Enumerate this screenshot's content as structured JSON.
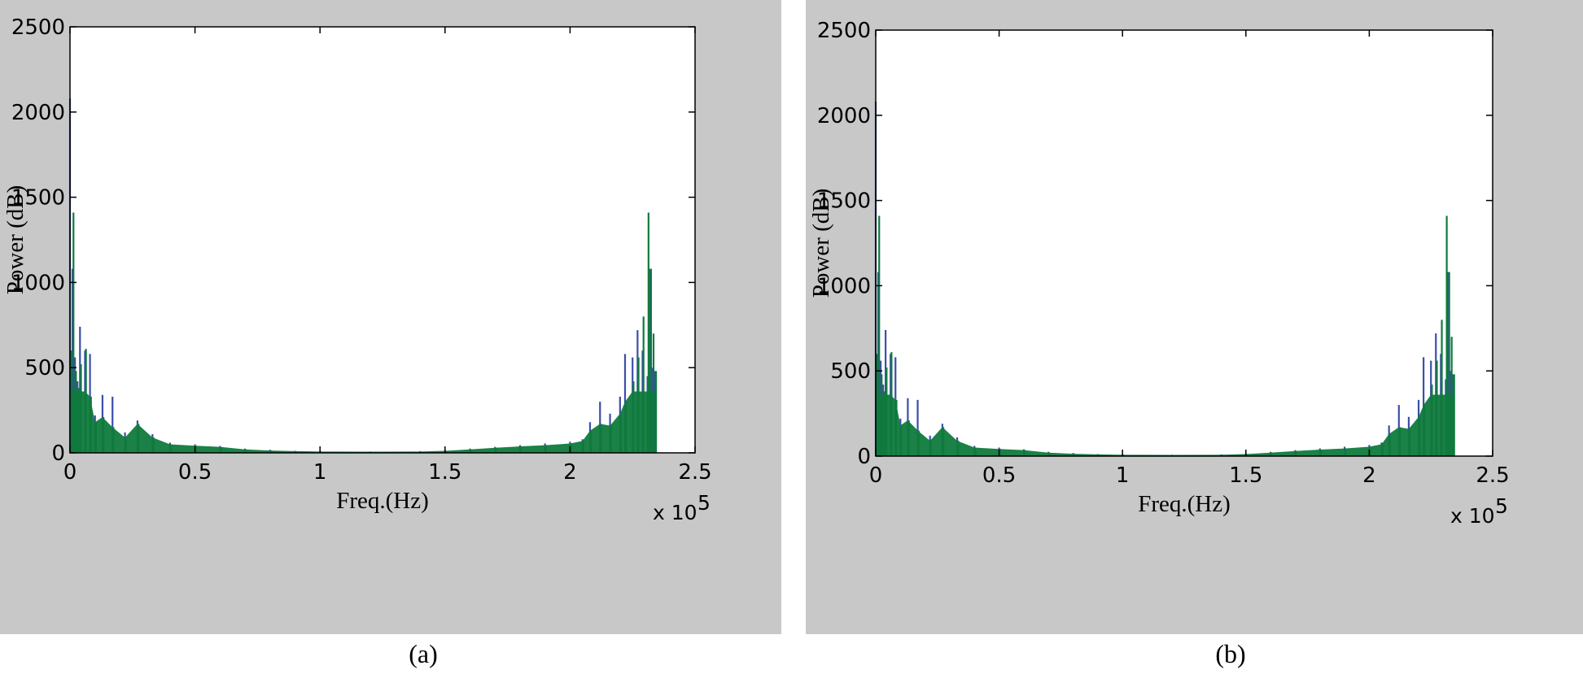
{
  "chart_data": [
    {
      "type": "bar",
      "panel_label": "(a)",
      "xlabel": "Freq.(Hz)",
      "ylabel": "Power (dB)",
      "x_multiplier": "x 10",
      "x_multiplier_exp": "5",
      "xlim": [
        0,
        2.5
      ],
      "ylim": [
        0,
        2500
      ],
      "xticks": [
        "0",
        "0.5",
        "1",
        "1.5",
        "2",
        "2.5"
      ],
      "yticks": [
        "0",
        "500",
        "1000",
        "1500",
        "2000",
        "2500"
      ],
      "grid": false,
      "colors": {
        "series_1": "#3a4fa8",
        "series_2": "#0f7a3c"
      },
      "series": [
        {
          "x": [
            0,
            0.01,
            0.02,
            0.03,
            0.04,
            0.06,
            0.08,
            0.1,
            0.13,
            0.17,
            0.22,
            0.27,
            0.33,
            0.4,
            0.5,
            0.6,
            0.7,
            0.8,
            0.9,
            1.0,
            1.2,
            1.4,
            1.5,
            1.6,
            1.7,
            1.8,
            1.9,
            2.0,
            2.05,
            2.08,
            2.12,
            2.16,
            2.2,
            2.22,
            2.25,
            2.27,
            2.29,
            2.31,
            2.32,
            2.33,
            2.34
          ],
          "values": [
            2080,
            1080,
            560,
            420,
            740,
            600,
            580,
            220,
            340,
            330,
            120,
            190,
            110,
            60,
            50,
            40,
            25,
            18,
            12,
            10,
            8,
            10,
            15,
            25,
            35,
            45,
            55,
            65,
            80,
            180,
            300,
            230,
            330,
            580,
            560,
            720,
            600,
            450,
            1080,
            500,
            480
          ]
        },
        {
          "x": [
            0,
            0.01,
            0.02,
            0.03,
            0.04,
            0.06,
            0.08,
            0.1,
            0.13,
            0.17,
            0.22,
            0.27,
            0.33,
            0.4,
            0.5,
            0.6,
            0.7,
            0.8,
            0.9,
            1.0,
            1.2,
            1.4,
            1.5,
            1.6,
            1.7,
            1.8,
            1.9,
            2.0,
            2.05,
            2.08,
            2.12,
            2.16,
            2.2,
            2.22,
            2.25,
            2.27,
            2.29,
            2.31,
            2.32,
            2.33,
            2.34
          ],
          "values": [
            600,
            1410,
            480,
            380,
            520,
            610,
            330,
            180,
            210,
            150,
            90,
            170,
            90,
            50,
            42,
            35,
            20,
            14,
            10,
            8,
            7,
            8,
            12,
            20,
            30,
            38,
            45,
            55,
            70,
            130,
            170,
            160,
            230,
            300,
            420,
            560,
            800,
            1410,
            1080,
            700,
            480
          ]
        }
      ]
    },
    {
      "type": "bar",
      "panel_label": "(b)",
      "xlabel": "Freq.(Hz)",
      "ylabel": "Power (dB)",
      "x_multiplier": "x 10",
      "x_multiplier_exp": "5",
      "xlim": [
        0,
        2.5
      ],
      "ylim": [
        0,
        2500
      ],
      "xticks": [
        "0",
        "0.5",
        "1",
        "1.5",
        "2",
        "2.5"
      ],
      "yticks": [
        "0",
        "500",
        "1000",
        "1500",
        "2000",
        "2500"
      ],
      "grid": false,
      "colors": {
        "series_1": "#3a4fa8",
        "series_2": "#0f7a3c"
      },
      "series": [
        {
          "x": [
            0,
            0.01,
            0.02,
            0.03,
            0.04,
            0.06,
            0.08,
            0.1,
            0.13,
            0.17,
            0.22,
            0.27,
            0.33,
            0.4,
            0.5,
            0.6,
            0.7,
            0.8,
            0.9,
            1.0,
            1.2,
            1.4,
            1.5,
            1.6,
            1.7,
            1.8,
            1.9,
            2.0,
            2.05,
            2.08,
            2.12,
            2.16,
            2.2,
            2.22,
            2.25,
            2.27,
            2.29,
            2.31,
            2.32,
            2.33,
            2.34
          ],
          "values": [
            2080,
            1080,
            560,
            420,
            740,
            600,
            580,
            220,
            340,
            330,
            120,
            190,
            110,
            60,
            50,
            40,
            25,
            18,
            12,
            10,
            8,
            10,
            15,
            25,
            35,
            45,
            55,
            65,
            80,
            180,
            300,
            230,
            330,
            580,
            560,
            720,
            600,
            450,
            1080,
            500,
            480
          ]
        },
        {
          "x": [
            0,
            0.01,
            0.02,
            0.03,
            0.04,
            0.06,
            0.08,
            0.1,
            0.13,
            0.17,
            0.22,
            0.27,
            0.33,
            0.4,
            0.5,
            0.6,
            0.7,
            0.8,
            0.9,
            1.0,
            1.2,
            1.4,
            1.5,
            1.6,
            1.7,
            1.8,
            1.9,
            2.0,
            2.05,
            2.08,
            2.12,
            2.16,
            2.2,
            2.22,
            2.25,
            2.27,
            2.29,
            2.31,
            2.32,
            2.33,
            2.34
          ],
          "values": [
            600,
            1410,
            480,
            380,
            520,
            610,
            330,
            180,
            210,
            150,
            90,
            170,
            90,
            50,
            42,
            35,
            20,
            14,
            10,
            8,
            7,
            8,
            12,
            20,
            30,
            38,
            45,
            55,
            70,
            130,
            170,
            160,
            230,
            300,
            420,
            560,
            800,
            1410,
            1080,
            700,
            480
          ]
        }
      ]
    }
  ]
}
